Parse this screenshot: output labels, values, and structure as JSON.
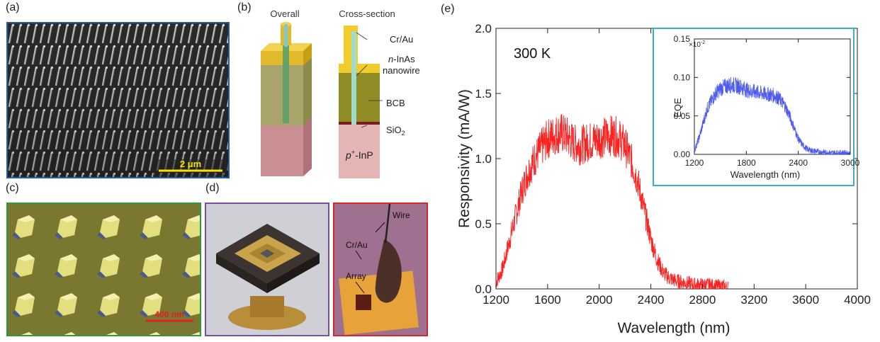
{
  "panels": {
    "a": {
      "label": "(a)",
      "scale_bar": "2 μm"
    },
    "b": {
      "label": "(b)",
      "title_overall": "Overall",
      "title_cross": "Cross-section",
      "callouts": {
        "crau": "Cr/Au",
        "inas_italic": "n",
        "inas_rest": "-InAs",
        "nanowire": "nanowire",
        "bcb": "BCB",
        "sio2_base": "SiO",
        "sio2_sub": "2",
        "inp_sup": "+",
        "inp_p": "p",
        "inp_rest": "-InP"
      }
    },
    "c": {
      "label": "(c)",
      "scale_bar": "400 nm"
    },
    "d": {
      "label": "(d)",
      "wire": "Wire",
      "crau": "Cr/Au",
      "array": "Array"
    },
    "e": {
      "label": "(e)"
    }
  },
  "colors": {
    "panel_a_border": "#1f5fa8",
    "panel_c_border": "#2e9a3c",
    "panel_d1_border": "#7a4fa0",
    "panel_d2_border": "#d6282a",
    "inset_border": "#36b0c8",
    "main_trace": "#ff2020",
    "inset_trace": "#4f5bf0",
    "scale_a": "#f2e600",
    "scale_c": "#e02020"
  },
  "chart_data": [
    {
      "type": "line",
      "annotation": "300 K",
      "xlabel": "Wavelength (nm)",
      "ylabel": "Responsivity (mA/W)",
      "xlim": [
        1200,
        4000
      ],
      "ylim": [
        0,
        2.0
      ],
      "xticks": [
        "1200",
        "1600",
        "2000",
        "2400",
        "2800",
        "3200",
        "3600",
        "4000"
      ],
      "yticks": [
        "0.0",
        "0.5",
        "1.0",
        "1.5",
        "2.0"
      ],
      "series": [
        {
          "x": [
            1200,
            1250,
            1300,
            1350,
            1400,
            1450,
            1500,
            1550,
            1600,
            1650,
            1700,
            1750,
            1800,
            1850,
            1900,
            1950,
            2000,
            2050,
            2100,
            2150,
            2200,
            2250,
            2300,
            2350,
            2400,
            2450,
            2500,
            2550,
            2600,
            2650,
            2700,
            2750,
            2800,
            2850,
            2900,
            2950,
            3000
          ],
          "y": [
            0.05,
            0.15,
            0.35,
            0.55,
            0.75,
            0.9,
            1.0,
            1.08,
            1.15,
            1.18,
            1.2,
            1.17,
            1.12,
            1.1,
            1.12,
            1.14,
            1.15,
            1.17,
            1.18,
            1.16,
            1.1,
            0.98,
            0.82,
            0.6,
            0.38,
            0.22,
            0.12,
            0.08,
            0.06,
            0.05,
            0.04,
            0.03,
            0.03,
            0.03,
            0.02,
            0.02,
            0.01
          ]
        }
      ]
    },
    {
      "type": "line",
      "xlabel": "Wavelength (nm)",
      "ylabel": "EQE",
      "scale_label": "×10",
      "scale_exp": "-2",
      "xlim": [
        1200,
        3000
      ],
      "ylim": [
        0,
        0.15
      ],
      "xticks": [
        "1200",
        "1800",
        "2400",
        "3000"
      ],
      "yticks": [
        "0.00",
        "0.05",
        "0.10",
        "0.15"
      ],
      "series": [
        {
          "x": [
            1200,
            1250,
            1300,
            1350,
            1400,
            1450,
            1500,
            1550,
            1600,
            1650,
            1700,
            1750,
            1800,
            1850,
            1900,
            1950,
            2000,
            2050,
            2100,
            2150,
            2200,
            2250,
            2300,
            2350,
            2400,
            2450,
            2500,
            2550,
            2600,
            2650,
            2700,
            2750,
            2800,
            2850,
            2900,
            2950,
            3000
          ],
          "y": [
            0.005,
            0.02,
            0.04,
            0.06,
            0.07,
            0.08,
            0.085,
            0.088,
            0.09,
            0.09,
            0.089,
            0.087,
            0.084,
            0.082,
            0.081,
            0.08,
            0.079,
            0.078,
            0.077,
            0.075,
            0.07,
            0.062,
            0.05,
            0.035,
            0.02,
            0.012,
            0.007,
            0.005,
            0.004,
            0.003,
            0.003,
            0.002,
            0.002,
            0.002,
            0.002,
            0.002,
            0.001
          ]
        }
      ]
    }
  ]
}
